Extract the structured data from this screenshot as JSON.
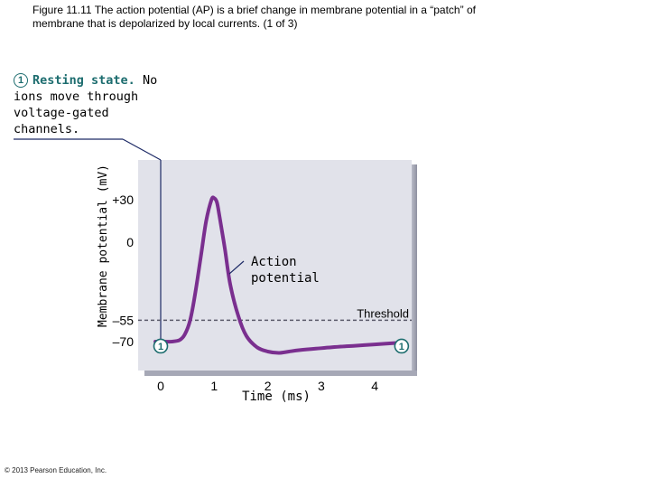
{
  "caption": {
    "line1": "Figure 11.11  The action potential (AP) is a brief change in membrane potential in a “patch” of",
    "line2": "membrane that is depolarized by local currents. (1 of 3)"
  },
  "stage": {
    "number": "1",
    "title": "Resting state.",
    "text_first": "No",
    "text_rest": "ions move through voltage-gated channels."
  },
  "colors": {
    "curve": "#7a2f8f",
    "badge": "#1d6d6f",
    "plot_bg": "#e1e2ea",
    "threshold": "#5a5a6a"
  },
  "chart_data": {
    "type": "line",
    "xlabel": "Time (ms)",
    "ylabel": "Membrane potential (mV)",
    "xlim": [
      0,
      4.5
    ],
    "ylim": [
      -80,
      45
    ],
    "x_ticks": [
      "0",
      "1",
      "2",
      "3",
      "4"
    ],
    "y_ticks": [
      {
        "label": "+30",
        "value": 30
      },
      {
        "label": "0",
        "value": 0
      },
      {
        "label": "–55",
        "value": -55
      },
      {
        "label": "–70",
        "value": -70
      }
    ],
    "threshold": {
      "label": "Threshold",
      "value": -55
    },
    "annotation": {
      "line1": "Action",
      "line2": "potential"
    },
    "markers": [
      {
        "label": "1",
        "x": 0.0,
        "y": -70
      },
      {
        "label": "1",
        "x": 4.5,
        "y": -70
      }
    ],
    "series": [
      {
        "x": [
          -0.1,
          0.0,
          0.2,
          0.35,
          0.45,
          0.55,
          0.65,
          0.75,
          0.85,
          0.95,
          1.0,
          1.05,
          1.1,
          1.2,
          1.3,
          1.45,
          1.6,
          1.8,
          2.0,
          2.2,
          2.4,
          2.6,
          2.9,
          3.2,
          3.6,
          4.0,
          4.4
        ],
        "y": [
          -70,
          -70,
          -70,
          -69,
          -65,
          -55,
          -35,
          -10,
          15,
          30,
          31,
          28,
          18,
          -5,
          -30,
          -52,
          -66,
          -74,
          -77,
          -78,
          -77,
          -76,
          -75,
          -74,
          -73,
          -72,
          -71
        ]
      }
    ]
  }
}
